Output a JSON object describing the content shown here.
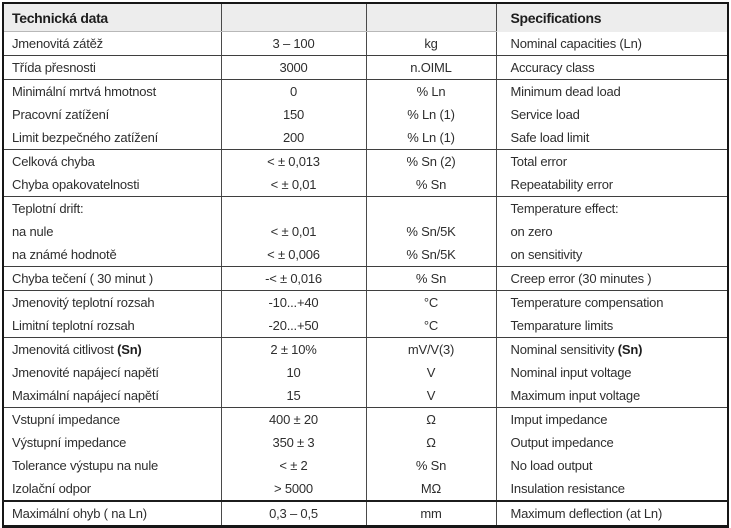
{
  "header": {
    "czech": "Technická data",
    "english": "Specifications"
  },
  "rows": [
    {
      "czech": "Jmenovitá zátěž",
      "value": "3 – 100",
      "unit": "kg",
      "english": "Nominal capacities (Ln)"
    },
    {
      "czech": "Třída přesnosti",
      "value": "3000",
      "unit": "n.OIML",
      "english": "Accuracy class"
    },
    {
      "czech": "Minimální mrtvá hmotnost",
      "value": "0",
      "unit": "% Ln",
      "english": "Minimum dead load"
    },
    {
      "czech": "Pracovní zatížení",
      "value": "150",
      "unit": "% Ln (1)",
      "english": "Service load"
    },
    {
      "czech": "Limit bezpečného zatížení",
      "value": "200",
      "unit": "% Ln (1)",
      "english": "Safe load limit"
    },
    {
      "czech": "Celková chyba",
      "value": "< ± 0,013",
      "unit": "% Sn (2)",
      "english": "Total error"
    },
    {
      "czech": "Chyba opakovatelnosti",
      "value": "< ± 0,01",
      "unit": "% Sn",
      "english": "Repeatability error"
    },
    {
      "czech": "Teplotní drift:",
      "value": "",
      "unit": "",
      "english": "Temperature effect:"
    },
    {
      "czech": "na nule",
      "value": "< ± 0,01",
      "unit": "% Sn/5K",
      "english": "on zero"
    },
    {
      "czech": "na známé hodnotě",
      "value": "< ± 0,006",
      "unit": "% Sn/5K",
      "english": "on sensitivity"
    },
    {
      "czech": "Chyba tečení ( 30 minut )",
      "value": "-< ± 0,016",
      "unit": "% Sn",
      "english": "Creep error (30 minutes )"
    },
    {
      "czech": "Jmenovitý teplotní rozsah",
      "value": "-10...+40",
      "unit": "°C",
      "english": "Temperature compensation"
    },
    {
      "czech": "Limitní teplotní rozsah",
      "value": "-20...+50",
      "unit": "°C",
      "english": "Temparature limits"
    },
    {
      "czech": "Jmenovitá citlivost ",
      "czech_bold": "(Sn)",
      "value": "2 ± 10%",
      "unit": "mV/V(3)",
      "english": "Nominal sensitivity ",
      "english_bold": "(Sn)"
    },
    {
      "czech": "Jmenovité napájecí napětí",
      "value": "10",
      "unit": "V",
      "english": "Nominal input voltage"
    },
    {
      "czech": "Maximální napájecí napětí",
      "value": "15",
      "unit": "V",
      "english": "Maximum input voltage"
    },
    {
      "czech": "Vstupní impedance",
      "value": "400 ± 20",
      "unit": "Ω",
      "english": "Imput impedance"
    },
    {
      "czech": "Výstupní impedance",
      "value": "350 ± 3",
      "unit": "Ω",
      "english": "Output impedance"
    },
    {
      "czech": "Tolerance výstupu na nule",
      "value": "< ± 2",
      "unit": "% Sn",
      "english": "No load output"
    },
    {
      "czech": "Izolační odpor",
      "value": "> 5000",
      "unit": "MΩ",
      "english": "Insulation resistance"
    },
    {
      "czech": "Maximální ohyb ( na Ln)",
      "value": "0,3 – 0,5",
      "unit": "mm",
      "english": "Maximum deflection (at Ln)"
    }
  ]
}
